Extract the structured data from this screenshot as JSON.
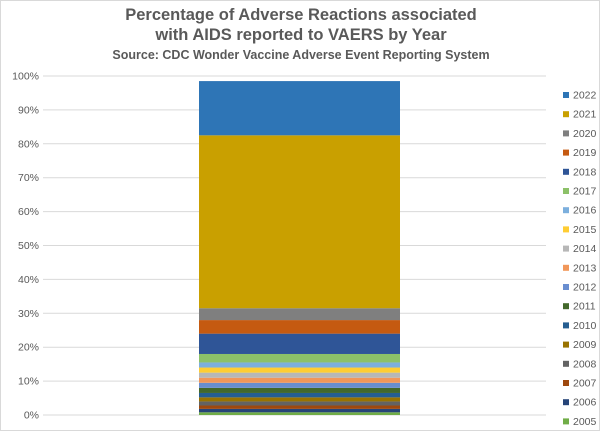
{
  "chart_data": {
    "type": "bar",
    "stacked": true,
    "percent_stacked": true,
    "title": "Percentage of Adverse Reactions associated with AIDS reported to VAERS by Year",
    "title_lines": [
      "Percentage of Adverse Reactions associated",
      "with AIDS reported to VAERS by Year"
    ],
    "subtitle": "Source: CDC Wonder Vaccine Adverse Event Reporting System",
    "xlabel": "",
    "ylabel": "",
    "ylim": [
      0,
      100
    ],
    "y_ticks": [
      "0%",
      "10%",
      "20%",
      "30%",
      "40%",
      "50%",
      "60%",
      "70%",
      "80%",
      "90%",
      "100%"
    ],
    "grid": true,
    "legend_position": "right",
    "series": [
      {
        "name": "2005",
        "value": 0.8,
        "color": "#70ad47"
      },
      {
        "name": "2006",
        "value": 1.0,
        "color": "#264478"
      },
      {
        "name": "2007",
        "value": 1.0,
        "color": "#9e480e"
      },
      {
        "name": "2008",
        "value": 1.2,
        "color": "#636363"
      },
      {
        "name": "2009",
        "value": 1.2,
        "color": "#997300"
      },
      {
        "name": "2010",
        "value": 1.3,
        "color": "#255e91"
      },
      {
        "name": "2011",
        "value": 1.5,
        "color": "#43682b"
      },
      {
        "name": "2012",
        "value": 1.5,
        "color": "#698ed0"
      },
      {
        "name": "2013",
        "value": 1.5,
        "color": "#f1975a"
      },
      {
        "name": "2014",
        "value": 1.5,
        "color": "#b7b7b7"
      },
      {
        "name": "2015",
        "value": 1.5,
        "color": "#ffcd33"
      },
      {
        "name": "2016",
        "value": 1.5,
        "color": "#7cafdd"
      },
      {
        "name": "2017",
        "value": 2.5,
        "color": "#8cc168"
      },
      {
        "name": "2018",
        "value": 6.0,
        "color": "#2f5597"
      },
      {
        "name": "2019",
        "value": 4.0,
        "color": "#c55a11"
      },
      {
        "name": "2020",
        "value": 3.5,
        "color": "#7f7f7f"
      },
      {
        "name": "2021",
        "value": 51.0,
        "color": "#c9a000"
      },
      {
        "name": "2022",
        "value": 16.0,
        "color": "#2e75b6"
      }
    ]
  }
}
